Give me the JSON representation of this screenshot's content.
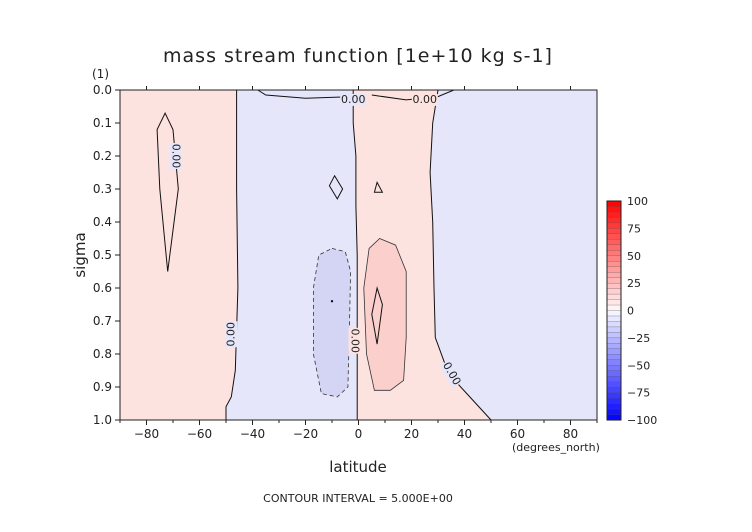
{
  "chart_data": {
    "type": "contour",
    "title": "mass stream function [1e+10 kg s-1]",
    "xlabel": "latitude",
    "xunit": "(degrees_north)",
    "ylabel": "sigma",
    "yunit": "(1)",
    "xlim": [
      -90,
      90
    ],
    "ylim": [
      1.0,
      0.0
    ],
    "xticks": [
      -80,
      -60,
      -40,
      -20,
      0,
      20,
      40,
      60,
      80
    ],
    "xtick_labels": [
      "−80",
      "−60",
      "−40",
      "−20",
      "0",
      "20",
      "40",
      "60",
      "80"
    ],
    "yticks": [
      0.0,
      0.1,
      0.2,
      0.3,
      0.4,
      0.5,
      0.6,
      0.7,
      0.8,
      0.9,
      1.0
    ],
    "ytick_labels": [
      "0.0",
      "0.1",
      "0.2",
      "0.3",
      "0.4",
      "0.5",
      "0.6",
      "0.7",
      "0.8",
      "0.9",
      "1.0"
    ],
    "footer": "CONTOUR INTERVAL = 5.000E+00",
    "contour_labels": [
      {
        "text": "0.00",
        "lat": -2,
        "sigma": 0.03
      },
      {
        "text": "0.00",
        "lat": 25,
        "sigma": 0.03
      },
      {
        "text": "0.00",
        "lat": -69,
        "sigma": 0.2,
        "rotate": 90
      },
      {
        "text": "0.00",
        "lat": -48,
        "sigma": 0.74,
        "rotate": -90
      },
      {
        "text": "0.00",
        "lat": -1.5,
        "sigma": 0.76,
        "rotate": 90
      },
      {
        "text": "0.00",
        "lat": 35,
        "sigma": 0.86,
        "rotate": 60
      }
    ],
    "colorbar": {
      "ticks": [
        100,
        75,
        50,
        25,
        0,
        -25,
        -50,
        -75,
        -100
      ],
      "tick_labels": [
        "100",
        "75",
        "50",
        "25",
        "0",
        "−25",
        "−50",
        "−75",
        "−100"
      ],
      "range": [
        -100,
        100
      ]
    },
    "regions": [
      {
        "sign": "positive",
        "value": 1,
        "lat_range": [
          -90,
          -46
        ],
        "sigma_range": [
          0.0,
          1.0
        ]
      },
      {
        "sign": "negative",
        "value": -1,
        "lat_range": [
          -46,
          0
        ],
        "sigma_range": [
          0.0,
          1.0
        ]
      },
      {
        "sign": "positive",
        "value": 1,
        "lat_range": [
          0,
          30
        ],
        "sigma_range": [
          0.0,
          1.0
        ]
      },
      {
        "sign": "negative",
        "value": -1,
        "lat_range": [
          30,
          90
        ],
        "sigma_range": [
          0.0,
          1.0
        ]
      },
      {
        "sign": "negative",
        "value": -5,
        "lat_range": [
          -17,
          -3
        ],
        "sigma_range": [
          0.48,
          0.93
        ],
        "label": "minus 5 contour"
      },
      {
        "sign": "positive",
        "value": 5,
        "lat_range": [
          2,
          18
        ],
        "sigma_range": [
          0.45,
          0.91
        ],
        "label": "plus 5 contour"
      }
    ],
    "colors": {
      "positive_fill": "#fde3e0",
      "negative_fill": "#e6e6fb",
      "positive_strong": "#fbcfcc",
      "negative_strong": "#d4d4f5",
      "colorbar_top": "#e60000",
      "colorbar_bottom": "#0000e6"
    }
  }
}
